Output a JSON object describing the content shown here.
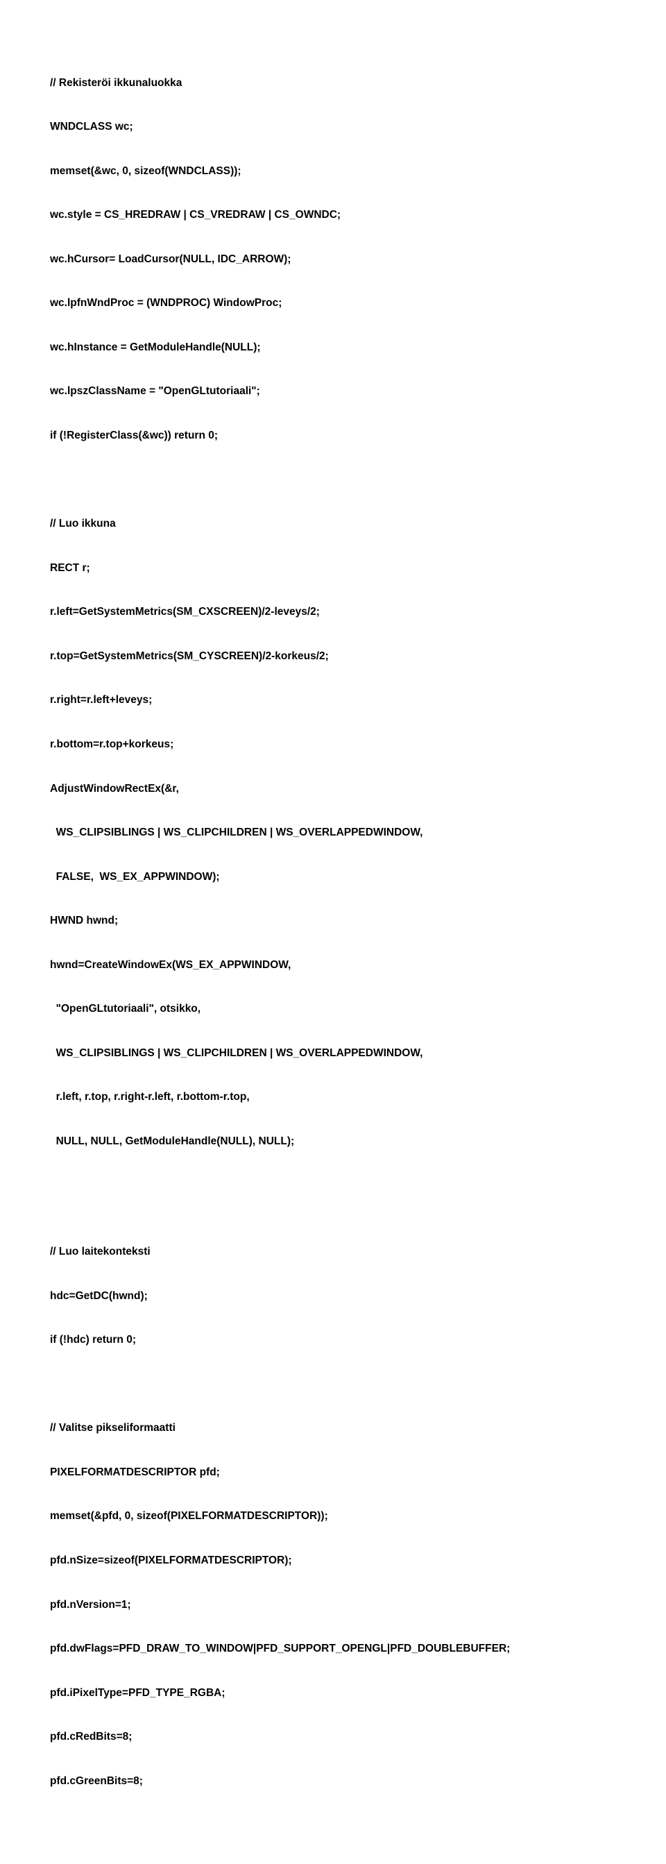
{
  "title_fontsize": 15.5,
  "font_family": "Arial",
  "font_weight": "bold",
  "text_color": "#000000",
  "background_color": "#ffffff",
  "line_height": 2.05,
  "sections": {
    "s1": {
      "l1": "// Rekisteröi ikkunaluokka",
      "l2": "WNDCLASS wc;",
      "l3": "memset(&wc, 0, sizeof(WNDCLASS));",
      "l4": "wc.style = CS_HREDRAW | CS_VREDRAW | CS_OWNDC;",
      "l5": "wc.hCursor= LoadCursor(NULL, IDC_ARROW);",
      "l6": "wc.lpfnWndProc = (WNDPROC) WindowProc;",
      "l7": "wc.hInstance = GetModuleHandle(NULL);",
      "l8": "wc.lpszClassName = \"OpenGLtutoriaali\";",
      "l9": "if (!RegisterClass(&wc)) return 0;"
    },
    "s2": {
      "l1": "// Luo ikkuna",
      "l2": "RECT r;",
      "l3": "r.left=GetSystemMetrics(SM_CXSCREEN)/2-leveys/2;",
      "l4": "r.top=GetSystemMetrics(SM_CYSCREEN)/2-korkeus/2;",
      "l5": "r.right=r.left+leveys;",
      "l6": "r.bottom=r.top+korkeus;",
      "l7": "AdjustWindowRectEx(&r,",
      "l8": "  WS_CLIPSIBLINGS | WS_CLIPCHILDREN | WS_OVERLAPPEDWINDOW,",
      "l9": "  FALSE,  WS_EX_APPWINDOW);",
      "l10": "HWND hwnd;",
      "l11": "hwnd=CreateWindowEx(WS_EX_APPWINDOW,",
      "l12": "  \"OpenGLtutoriaali\", otsikko,",
      "l13": "  WS_CLIPSIBLINGS | WS_CLIPCHILDREN | WS_OVERLAPPEDWINDOW,",
      "l14": "  r.left, r.top, r.right-r.left, r.bottom-r.top,",
      "l15": "  NULL, NULL, GetModuleHandle(NULL), NULL);"
    },
    "s3": {
      "l1": "// Luo laitekonteksti",
      "l2": "hdc=GetDC(hwnd);",
      "l3": "if (!hdc) return 0;"
    },
    "s4": {
      "l1": "// Valitse pikseliformaatti",
      "l2": "PIXELFORMATDESCRIPTOR pfd;",
      "l3": "memset(&pfd, 0, sizeof(PIXELFORMATDESCRIPTOR));",
      "l4": "pfd.nSize=sizeof(PIXELFORMATDESCRIPTOR);",
      "l5": "pfd.nVersion=1;",
      "l6": "pfd.dwFlags=PFD_DRAW_TO_WINDOW|PFD_SUPPORT_OPENGL|PFD_DOUBLEBUFFER;",
      "l7": "pfd.iPixelType=PFD_TYPE_RGBA;",
      "l8": "pfd.cRedBits=8;",
      "l9": "pfd.cGreenBits=8;"
    }
  }
}
